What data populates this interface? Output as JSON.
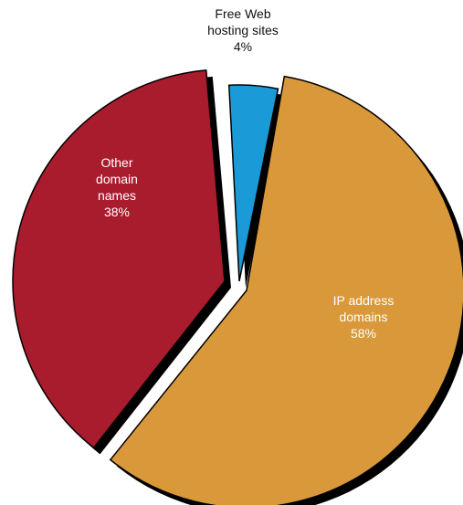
{
  "chart_data": {
    "type": "pie",
    "title": "",
    "slices": [
      {
        "key": "ip",
        "label_lines": [
          "IP address",
          "domains",
          "58%"
        ],
        "value": 58,
        "color": "#D9983A"
      },
      {
        "key": "other",
        "label_lines": [
          "Other",
          "domain",
          "names",
          "38%"
        ],
        "value": 38,
        "color": "#A81C2E"
      },
      {
        "key": "free",
        "label_lines": [
          "Free Web",
          "hosting sites",
          "4%"
        ],
        "value": 4,
        "color": "#1A9AD6"
      }
    ],
    "exploded": true,
    "shadow": true,
    "legend": "none"
  }
}
